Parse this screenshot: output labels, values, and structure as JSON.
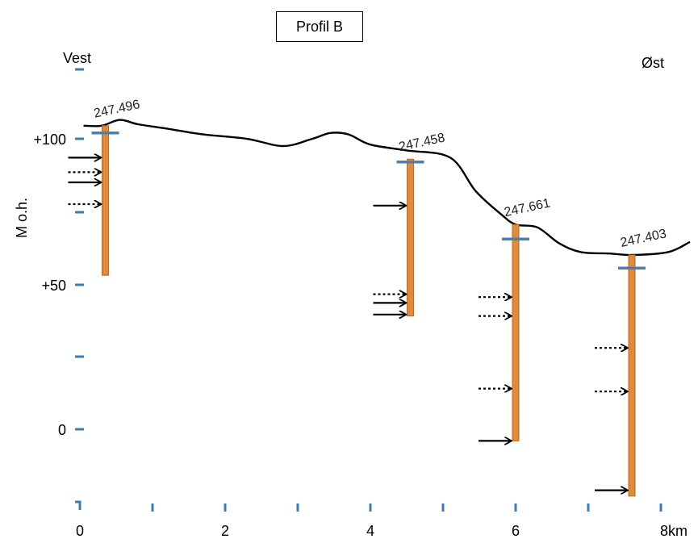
{
  "title": "Profil B",
  "west_label": "Vest",
  "east_label": "Øst",
  "y_axis_label": "M o.h.",
  "y_tick_labels": [
    "+100",
    "+50",
    "0"
  ],
  "x_tick_labels": [
    "0",
    "2",
    "4",
    "6",
    "8km"
  ],
  "colors": {
    "terrain": "#000000",
    "borehole": "#e08a3a",
    "borehole_edge": "#b86a22",
    "water_level": "#4a7fb5",
    "axis_tick": "#3d7ab8",
    "arrow": "#000000"
  },
  "axes": {
    "x_unit": "km",
    "x_range": [
      0,
      8
    ],
    "y_unit": "m o.h.",
    "y_range": [
      -20,
      110
    ]
  },
  "terrain_profile": [
    [
      0.05,
      104.5
    ],
    [
      0.3,
      104.5
    ],
    [
      0.55,
      106.5
    ],
    [
      0.8,
      105
    ],
    [
      1.2,
      103.5
    ],
    [
      1.7,
      101.5
    ],
    [
      2.3,
      100
    ],
    [
      2.8,
      97.5
    ],
    [
      3.2,
      100
    ],
    [
      3.45,
      102
    ],
    [
      3.7,
      101.5
    ],
    [
      4.0,
      98
    ],
    [
      4.5,
      96
    ],
    [
      5.1,
      93.5
    ],
    [
      5.45,
      82
    ],
    [
      5.8,
      74
    ],
    [
      6.0,
      70.5
    ],
    [
      6.3,
      69.5
    ],
    [
      6.6,
      64
    ],
    [
      6.9,
      61
    ],
    [
      7.3,
      60.5
    ],
    [
      7.6,
      60
    ],
    [
      8.1,
      61
    ],
    [
      8.4,
      64.5
    ]
  ],
  "boreholes": [
    {
      "label": "247.496",
      "x": 0.35,
      "top": 104.5,
      "bottom": 53,
      "water_level": 102,
      "inflows": [
        {
          "depth": 93.5,
          "style": "solid"
        },
        {
          "depth": 88.5,
          "style": "dotted"
        },
        {
          "depth": 85,
          "style": "solid"
        },
        {
          "depth": 77.5,
          "style": "dotted"
        }
      ]
    },
    {
      "label": "247.458",
      "x": 4.55,
      "top": 93,
      "bottom": 39,
      "water_level": 92,
      "inflows": [
        {
          "depth": 77,
          "style": "solid"
        },
        {
          "depth": 46.5,
          "style": "dotted"
        },
        {
          "depth": 43.5,
          "style": "solid"
        },
        {
          "depth": 39.5,
          "style": "solid"
        }
      ]
    },
    {
      "label": "247.661",
      "x": 6.0,
      "top": 70.5,
      "bottom": -4,
      "water_level": 65.5,
      "inflows": [
        {
          "depth": 45.5,
          "style": "dotted"
        },
        {
          "depth": 39,
          "style": "dotted"
        },
        {
          "depth": 14,
          "style": "dotted"
        },
        {
          "depth": -4,
          "style": "solid"
        }
      ]
    },
    {
      "label": "247.403",
      "x": 7.6,
      "top": 60,
      "bottom": -23,
      "water_level": 55.5,
      "inflows": [
        {
          "depth": 28,
          "style": "dotted"
        },
        {
          "depth": 13,
          "style": "dotted"
        },
        {
          "depth": -21,
          "style": "solid"
        }
      ]
    }
  ]
}
